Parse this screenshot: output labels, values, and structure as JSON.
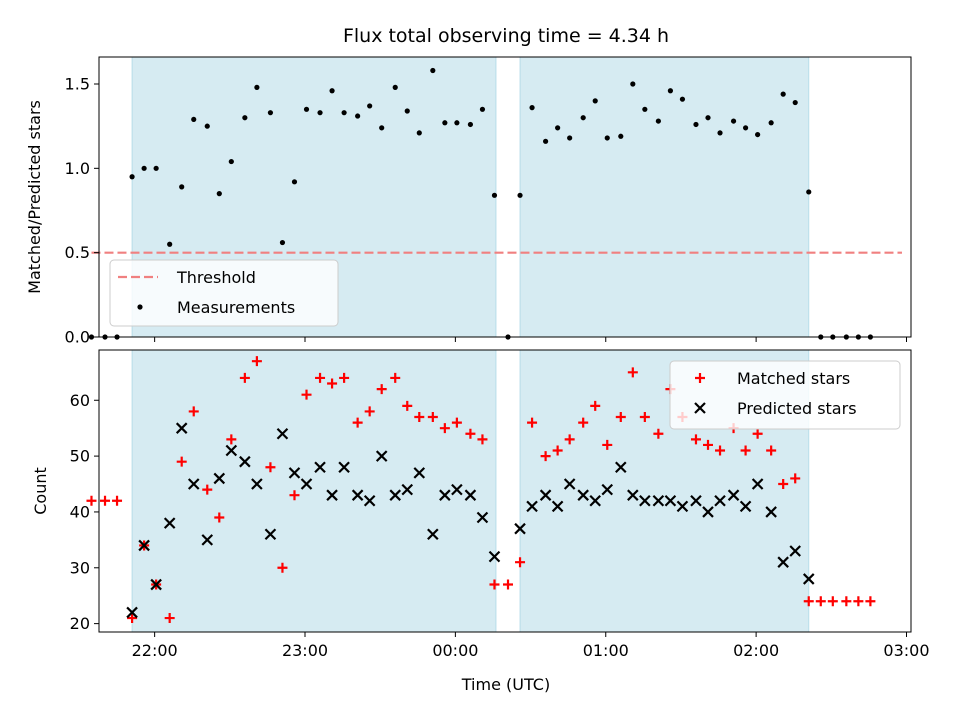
{
  "chart_data": {
    "title": "Flux total observing time = 4.34 h",
    "xlabel": "Time (UTC)",
    "x_unit": "hours UTC (values past 24 are after midnight)",
    "x_range": [
      21.63,
      27.03
    ],
    "x_ticks": [
      {
        "value": 22,
        "label": "22:00"
      },
      {
        "value": 23,
        "label": "23:00"
      },
      {
        "value": 24,
        "label": "00:00"
      },
      {
        "value": 25,
        "label": "01:00"
      },
      {
        "value": 26,
        "label": "02:00"
      },
      {
        "value": 27,
        "label": "03:00"
      }
    ],
    "shaded_color": "#add8e6",
    "observing_windows": [
      [
        21.85,
        24.27
      ],
      [
        24.43,
        26.35
      ]
    ],
    "panels": [
      {
        "type": "scatter",
        "ylabel": "Matched/Predicted stars",
        "ylim": [
          0,
          1.66
        ],
        "y_ticks": [
          0.0,
          0.5,
          1.0,
          1.5
        ],
        "y_tick_labels": [
          "0.0",
          "0.5",
          "1.0",
          "1.5"
        ],
        "legend_position": "lower-left",
        "threshold": {
          "name": "Threshold",
          "y": 0.5,
          "x_from": 21.58,
          "x_to": 26.97,
          "color": "#f08080"
        },
        "series": [
          {
            "name": "Measurements",
            "color": "#000000",
            "marker": "dot",
            "x": [
              21.58,
              21.67,
              21.75,
              21.85,
              21.93,
              22.01,
              22.1,
              22.18,
              22.26,
              22.35,
              22.43,
              22.51,
              22.6,
              22.68,
              22.77,
              22.85,
              22.93,
              23.01,
              23.1,
              23.18,
              23.26,
              23.35,
              23.43,
              23.51,
              23.6,
              23.68,
              23.76,
              23.85,
              23.93,
              24.01,
              24.1,
              24.18,
              24.26,
              24.35,
              24.43,
              24.51,
              24.6,
              24.68,
              24.76,
              24.85,
              24.93,
              25.01,
              25.1,
              25.18,
              25.26,
              25.35,
              25.43,
              25.51,
              25.6,
              25.68,
              25.76,
              25.85,
              25.93,
              26.01,
              26.1,
              26.18,
              26.26,
              26.35,
              26.43,
              26.51,
              26.6,
              26.68,
              26.76
            ],
            "y": [
              0.0,
              0.0,
              0.0,
              0.95,
              1.0,
              1.0,
              0.55,
              0.89,
              1.29,
              1.25,
              0.85,
              1.04,
              1.3,
              1.48,
              1.33,
              0.56,
              0.92,
              1.35,
              1.33,
              1.46,
              1.33,
              1.31,
              1.37,
              1.24,
              1.48,
              1.34,
              1.21,
              1.58,
              1.27,
              1.27,
              1.26,
              1.35,
              0.84,
              0.0,
              0.84,
              1.36,
              1.16,
              1.24,
              1.18,
              1.3,
              1.4,
              1.18,
              1.19,
              1.5,
              1.35,
              1.28,
              1.46,
              1.41,
              1.26,
              1.3,
              1.21,
              1.28,
              1.24,
              1.2,
              1.27,
              1.44,
              1.39,
              0.86,
              0.0,
              0.0,
              0.0,
              0.0,
              0.0
            ]
          }
        ]
      },
      {
        "type": "scatter",
        "ylabel": "Count",
        "ylim": [
          18.5,
          69
        ],
        "y_ticks": [
          20,
          30,
          40,
          50,
          60
        ],
        "y_tick_labels": [
          "20",
          "30",
          "40",
          "50",
          "60"
        ],
        "legend_position": "upper-right",
        "series": [
          {
            "name": "Matched stars",
            "color": "#ff0000",
            "marker": "plus",
            "x": [
              21.58,
              21.67,
              21.75,
              21.85,
              21.93,
              22.01,
              22.1,
              22.18,
              22.26,
              22.35,
              22.43,
              22.51,
              22.6,
              22.68,
              22.77,
              22.85,
              22.93,
              23.01,
              23.1,
              23.18,
              23.26,
              23.35,
              23.43,
              23.51,
              23.6,
              23.68,
              23.76,
              23.85,
              23.93,
              24.01,
              24.1,
              24.18,
              24.26,
              24.35,
              24.43,
              24.51,
              24.6,
              24.68,
              24.76,
              24.85,
              24.93,
              25.01,
              25.1,
              25.18,
              25.26,
              25.35,
              25.43,
              25.51,
              25.6,
              25.68,
              25.76,
              25.85,
              25.93,
              26.01,
              26.1,
              26.18,
              26.26,
              26.35,
              26.43,
              26.51,
              26.6,
              26.68,
              26.76
            ],
            "y": [
              42,
              42,
              42,
              21,
              34,
              27,
              21,
              49,
              58,
              44,
              39,
              53,
              64,
              67,
              48,
              30,
              43,
              61,
              64,
              63,
              64,
              56,
              58,
              62,
              64,
              59,
              57,
              57,
              55,
              56,
              54,
              53,
              27,
              27,
              31,
              56,
              50,
              51,
              53,
              56,
              59,
              52,
              57,
              65,
              57,
              54,
              62,
              57,
              53,
              52,
              51,
              55,
              51,
              54,
              51,
              45,
              46,
              24,
              24,
              24,
              24,
              24,
              24
            ]
          },
          {
            "name": "Predicted stars",
            "color": "#000000",
            "marker": "x",
            "x": [
              21.85,
              21.93,
              22.01,
              22.1,
              22.18,
              22.26,
              22.35,
              22.43,
              22.51,
              22.6,
              22.68,
              22.77,
              22.85,
              22.93,
              23.01,
              23.1,
              23.18,
              23.26,
              23.35,
              23.43,
              23.51,
              23.6,
              23.68,
              23.76,
              23.85,
              23.93,
              24.01,
              24.1,
              24.18,
              24.26,
              24.43,
              24.51,
              24.6,
              24.68,
              24.76,
              24.85,
              24.93,
              25.01,
              25.1,
              25.18,
              25.26,
              25.35,
              25.43,
              25.51,
              25.6,
              25.68,
              25.76,
              25.85,
              25.93,
              26.01,
              26.1,
              26.18,
              26.26,
              26.35
            ],
            "y": [
              22,
              34,
              27,
              38,
              55,
              45,
              35,
              46,
              51,
              49,
              45,
              36,
              54,
              47,
              45,
              48,
              43,
              48,
              43,
              42,
              50,
              43,
              44,
              47,
              36,
              43,
              44,
              43,
              39,
              32,
              37,
              41,
              43,
              41,
              45,
              43,
              42,
              44,
              48,
              43,
              42,
              42,
              42,
              41,
              42,
              40,
              42,
              43,
              41,
              45,
              40,
              31,
              33,
              28
            ]
          }
        ]
      }
    ]
  }
}
